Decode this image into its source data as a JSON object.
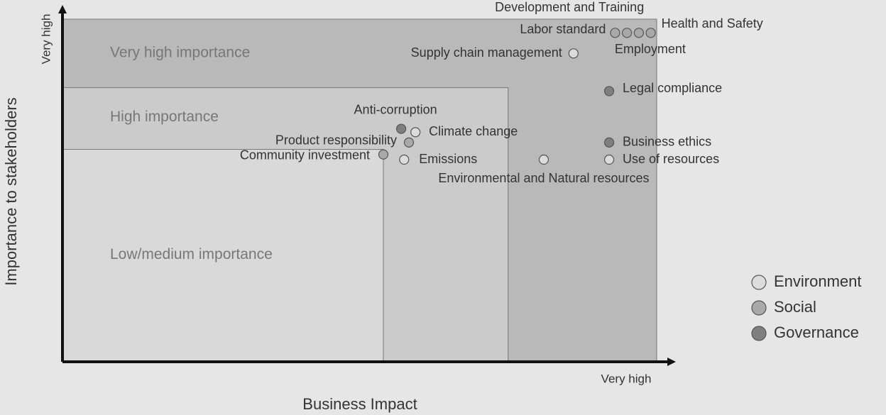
{
  "chart_data": {
    "type": "scatter",
    "xlabel": "Business Impact",
    "ylabel": "Importance to stakeholders",
    "xlim": [
      0,
      100
    ],
    "ylim": [
      0,
      100
    ],
    "xticks": [
      {
        "value": 100,
        "label": "Very high"
      }
    ],
    "yticks": [
      {
        "value": 100,
        "label": "Very high"
      }
    ],
    "regions": [
      {
        "label": "Very high importance",
        "xlim": [
          0,
          100
        ],
        "ylim": [
          0,
          100
        ],
        "color": "#b9b9ba"
      },
      {
        "label": "High importance",
        "xlim": [
          0,
          75
        ],
        "ylim": [
          0,
          80
        ],
        "color": "#cbcbcc"
      },
      {
        "label": "Low/medium importance",
        "xlim": [
          0,
          54
        ],
        "ylim": [
          0,
          62
        ],
        "color": "#d9d9da"
      }
    ],
    "legend": "right",
    "series": [
      {
        "name": "Environment",
        "color": "#dcdcdc",
        "labels": [
          "Supply chain management",
          "Climate change",
          "Emissions",
          "Environmental and Natural resources",
          "Use of resources"
        ],
        "x": [
          86,
          59.4,
          57.5,
          81,
          92
        ],
        "values": [
          90,
          67,
          59,
          59,
          59
        ]
      },
      {
        "name": "Social",
        "color": "#a9a9a9",
        "labels": [
          "Labor standard",
          "Development and Training",
          "Employment",
          "Health and Safety",
          "Product responsibility",
          "Community investment"
        ],
        "x": [
          93,
          95,
          97,
          99,
          58.3,
          54
        ],
        "values": [
          96,
          96,
          96,
          96,
          64,
          60.5
        ]
      },
      {
        "name": "Governance",
        "color": "#7f7f7f",
        "labels": [
          "Legal compliance",
          "Anti-corruption",
          "Business ethics"
        ],
        "x": [
          92,
          57,
          92
        ],
        "values": [
          79,
          68,
          64
        ]
      }
    ]
  }
}
